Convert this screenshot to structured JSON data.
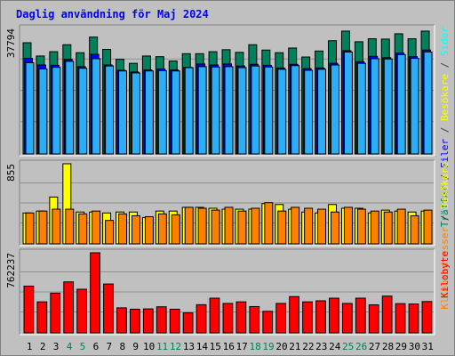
{
  "chart_data": [
    {
      "type": "bar",
      "panel": "top",
      "title": "Daglig användning för Maj 2024",
      "ylabel_parts": [
        {
          "text": "Träffar",
          "color": "#00805c"
        },
        {
          "text": " / ",
          "color": "#404040"
        },
        {
          "text": "Filer",
          "color": "#0000ff"
        },
        {
          "text": " / ",
          "color": "#404040"
        },
        {
          "text": "Besökare",
          "color": "#ffff00"
        },
        {
          "text": " / ",
          "color": "#404040"
        },
        {
          "text": "Sidor",
          "color": "#00ffff"
        }
      ],
      "ymax_label": "37794",
      "ylim": [
        0,
        37794
      ],
      "categories": [
        "1",
        "2",
        "3",
        "4",
        "5",
        "6",
        "7",
        "8",
        "9",
        "10",
        "11",
        "12",
        "13",
        "14",
        "15",
        "16",
        "17",
        "18",
        "19",
        "20",
        "21",
        "22",
        "23",
        "24",
        "25",
        "26",
        "27",
        "28",
        "29",
        "30",
        "31"
      ],
      "weekend_days": [
        "4",
        "5",
        "11",
        "12",
        "18",
        "19",
        "25",
        "26"
      ],
      "series": [
        {
          "name": "Träffar",
          "color": "#00805c",
          "values": [
            33500,
            29500,
            30800,
            32900,
            30500,
            35200,
            31500,
            28500,
            27300,
            29500,
            29300,
            28000,
            30200,
            30200,
            30800,
            31400,
            30600,
            32900,
            31300,
            30500,
            31900,
            29200,
            31000,
            34100,
            37000,
            33800,
            34700,
            34600,
            36200,
            34700,
            37000
          ]
        },
        {
          "name": "Filer",
          "color": "#0000ff",
          "values": [
            28800,
            26800,
            26700,
            28500,
            26300,
            30000,
            26800,
            25200,
            24700,
            25300,
            25600,
            25300,
            26100,
            27100,
            26800,
            27100,
            26500,
            27000,
            26700,
            25900,
            27000,
            25700,
            25900,
            27300,
            31100,
            27800,
            29400,
            29000,
            30400,
            29300,
            31300
          ]
        },
        {
          "name": "Sidor",
          "color": "#00ffff",
          "values": [
            27500,
            25600,
            26100,
            27900,
            25800,
            28700,
            26500,
            25000,
            24400,
            25000,
            25100,
            25000,
            26000,
            26300,
            26200,
            26300,
            26000,
            26500,
            26200,
            25500,
            26600,
            25200,
            25500,
            26800,
            30700,
            27300,
            28700,
            28600,
            29900,
            28800,
            30700
          ]
        }
      ]
    },
    {
      "type": "bar",
      "panel": "middle",
      "ylabel_parts": [
        {
          "text": "Klientadresser",
          "color": "#ff8000"
        },
        {
          "text": " / ",
          "color": "#404040"
        },
        {
          "text": "Besökare",
          "color": "#ffff00"
        }
      ],
      "ymax_label": "855",
      "ylim": [
        0,
        855
      ],
      "series": [
        {
          "name": "Besökare",
          "color": "#ffff00",
          "values": [
            330,
            350,
            500,
            855,
            340,
            340,
            330,
            340,
            340,
            280,
            350,
            350,
            390,
            390,
            380,
            370,
            370,
            370,
            430,
            420,
            370,
            340,
            330,
            420,
            380,
            380,
            330,
            360,
            350,
            340,
            350
          ]
        },
        {
          "name": "Klientadresser",
          "color": "#ff8000",
          "values": [
            330,
            350,
            370,
            370,
            320,
            350,
            250,
            320,
            300,
            290,
            320,
            310,
            390,
            380,
            360,
            390,
            350,
            380,
            440,
            350,
            390,
            380,
            370,
            340,
            390,
            370,
            350,
            340,
            370,
            300,
            360
          ]
        }
      ]
    },
    {
      "type": "bar",
      "panel": "bottom",
      "ylabel_parts": [
        {
          "text": "Kilobyte",
          "color": "#ff0000"
        }
      ],
      "ymax_label": "762237",
      "ylim": [
        0,
        762237
      ],
      "series": [
        {
          "name": "Kilobyte",
          "color": "#ff0000",
          "values": [
            445000,
            295000,
            378000,
            485000,
            415000,
            762237,
            465000,
            238000,
            225000,
            228000,
            248000,
            225000,
            190000,
            268000,
            330000,
            280000,
            295000,
            250000,
            205000,
            280000,
            345000,
            295000,
            305000,
            330000,
            280000,
            330000,
            267000,
            350000,
            278000,
            275000,
            298000
          ]
        }
      ]
    }
  ]
}
